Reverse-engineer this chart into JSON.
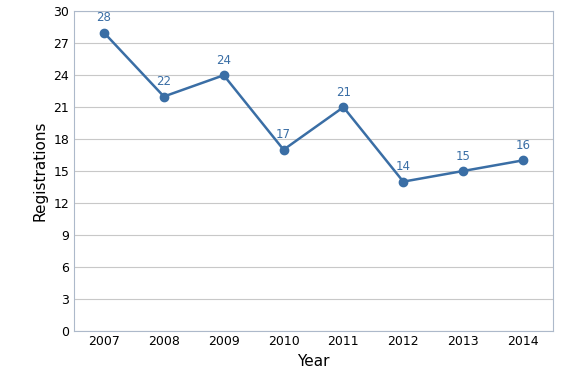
{
  "years": [
    2007,
    2008,
    2009,
    2010,
    2011,
    2012,
    2013,
    2014
  ],
  "values": [
    28,
    22,
    24,
    17,
    21,
    14,
    15,
    16
  ],
  "line_color": "#3A6EA5",
  "marker_color": "#3A6EA5",
  "marker_style": "o",
  "marker_size": 6,
  "line_width": 1.8,
  "xlabel": "Year",
  "ylabel": "Registrations",
  "ylim": [
    0,
    30
  ],
  "yticks": [
    0,
    3,
    6,
    9,
    12,
    15,
    18,
    21,
    24,
    27,
    30
  ],
  "grid_color": "#c8c8c8",
  "grid_linewidth": 0.8,
  "background_color": "#ffffff",
  "label_color": "#3A6EA5",
  "label_fontsize": 8.5,
  "axis_label_fontsize": 11,
  "tick_fontsize": 9,
  "spine_color": "#adb9ca"
}
